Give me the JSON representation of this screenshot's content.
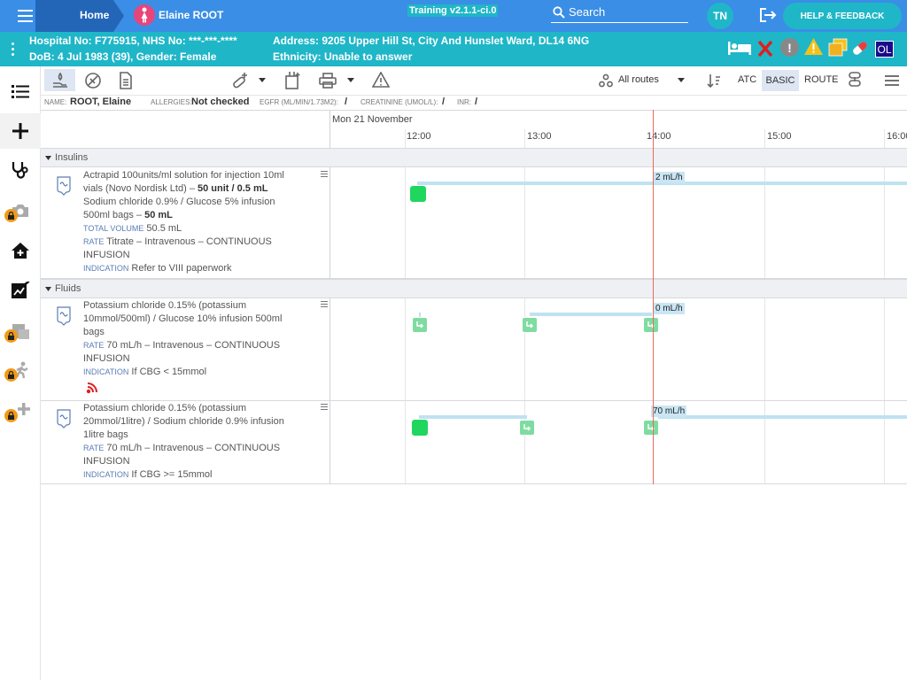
{
  "header": {
    "home_label": "Home",
    "patient_name": "Elaine ROOT",
    "training_label": "Training v2.1.1-ci.0",
    "search_label": "Search",
    "user_initials": "TN",
    "help_label": "HELP & FEEDBACK"
  },
  "patient": {
    "hospital_no": "Hospital No: F775915, NHS No: ***-***-****",
    "dob": "DoB: 4 Jul 1983 (39), Gender: Female",
    "address": "Address: 9205 Upper Hill St, City And Hunslet Ward, DL14 6NG",
    "ethnicity": "Ethnicity: Unable to answer",
    "ol_badge": "OL"
  },
  "toolbar": {
    "routes_label": "All routes",
    "atc_label": "ATC",
    "basic_label": "BASIC",
    "route_label": "ROUTE"
  },
  "info": {
    "name_key": "NAME:",
    "name_val": "ROOT, Elaine",
    "allergies_key": "ALLERGIES:",
    "allergies_val": "Not checked",
    "egfr_key": "EGFR (ML/MIN/1.73M2):",
    "egfr_val": "/",
    "creat_key": "CREATININE (UMOL/L):",
    "creat_val": "/",
    "inr_key": "INR:",
    "inr_val": "/"
  },
  "timeline": {
    "date": "Mon 21 November",
    "ticks": [
      "12:00",
      "13:00",
      "14:00",
      "15:00",
      "16:00"
    ]
  },
  "groups": {
    "insulins": "Insulins",
    "fluids": "Fluids"
  },
  "meds": [
    {
      "l1": "Actrapid 100units/ml solution for injection 10ml",
      "l2a": "vials (Novo Nordisk Ltd) – ",
      "l2b": "50 unit / 0.5 mL",
      "l3": "Sodium chloride 0.9% / Glucose 5% infusion",
      "l4a": "500ml bags – ",
      "l4b": "50 mL",
      "tv_key": "TOTAL VOLUME",
      "tv_val": " 50.5 mL",
      "rate_key": "RATE",
      "rate_val": " Titrate – Intravenous – CONTINUOUS",
      "rate_val2": "INFUSION",
      "ind_key": "INDICATION",
      "ind_val": " Refer to VIII paperwork",
      "rate_label": "2 mL/h"
    },
    {
      "l1": "Potassium chloride 0.15% (potassium",
      "l2": "10mmol/500ml) / Glucose 10% infusion 500ml",
      "l3": "bags",
      "rate_key": "RATE",
      "rate_val": " 70 mL/h – Intravenous – CONTINUOUS",
      "rate_val2": "INFUSION",
      "ind_key": "INDICATION",
      "ind_val": " If CBG < 15mmol",
      "rate_label": "0 mL/h"
    },
    {
      "l1": "Potassium chloride 0.15% (potassium",
      "l2": "20mmol/1litre) / Sodium chloride 0.9% infusion",
      "l3": "1litre bags",
      "rate_key": "RATE",
      "rate_val": " 70 mL/h – Intravenous – CONTINUOUS",
      "rate_val2": "INFUSION",
      "ind_key": "INDICATION",
      "ind_val": " If CBG >= 15mmol",
      "rate_label": "70 mL/h"
    }
  ],
  "colors": {
    "topbar": "#3a8ee6",
    "patient_bar": "#1fb6c8",
    "administered_green": "#1fd65f",
    "pending_green": "#7fdca0",
    "now_line": "#e66a5e",
    "infusion_bar": "#bfe2f0"
  }
}
